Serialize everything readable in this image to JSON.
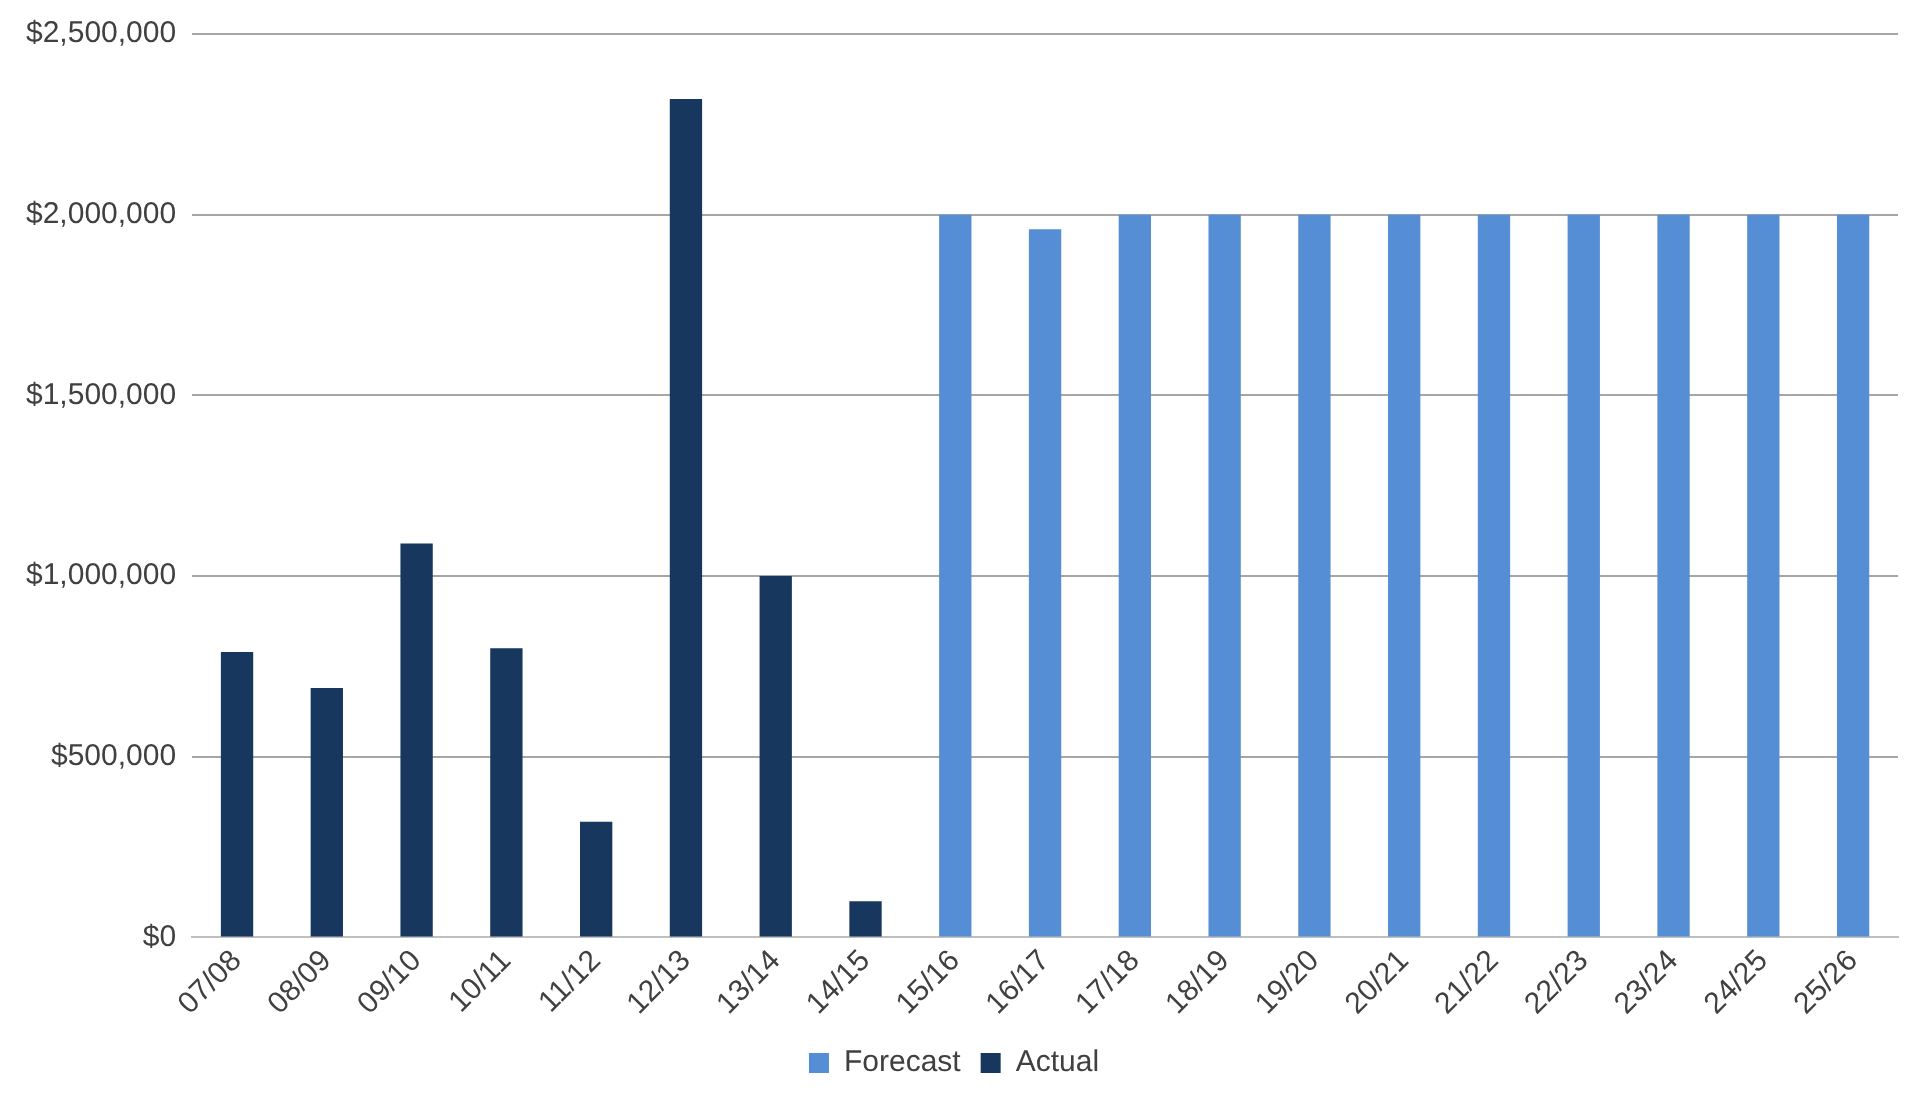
{
  "chart_data": {
    "type": "bar",
    "stacked": true,
    "categories": [
      "07/08",
      "08/09",
      "09/10",
      "10/11",
      "11/12",
      "12/13",
      "13/14",
      "14/15",
      "15/16",
      "16/17",
      "17/18",
      "18/19",
      "19/20",
      "20/21",
      "21/22",
      "22/23",
      "23/24",
      "24/25",
      "25/26"
    ],
    "series": [
      {
        "name": "Forecast",
        "color": "#558ed5",
        "values": [
          null,
          null,
          null,
          null,
          null,
          null,
          null,
          null,
          2000000,
          1960000,
          2000000,
          2000000,
          2000000,
          2000000,
          2000000,
          2000000,
          2000000,
          2000000,
          2000000
        ]
      },
      {
        "name": "Actual",
        "color": "#17375e",
        "values": [
          790000,
          690000,
          1090000,
          800000,
          320000,
          2320000,
          1000000,
          100000,
          null,
          null,
          null,
          null,
          null,
          null,
          null,
          null,
          null,
          null,
          null
        ]
      }
    ],
    "ylim": [
      0,
      2500000
    ],
    "yticks": [
      {
        "value": 0,
        "label": "$0"
      },
      {
        "value": 500000,
        "label": "$500,000"
      },
      {
        "value": 1000000,
        "label": "$1,000,000"
      },
      {
        "value": 1500000,
        "label": "$1,500,000"
      },
      {
        "value": 2000000,
        "label": "$2,000,000"
      },
      {
        "value": 2500000,
        "label": "$2,500,000"
      }
    ],
    "grid": "y",
    "legend": "bottom"
  }
}
